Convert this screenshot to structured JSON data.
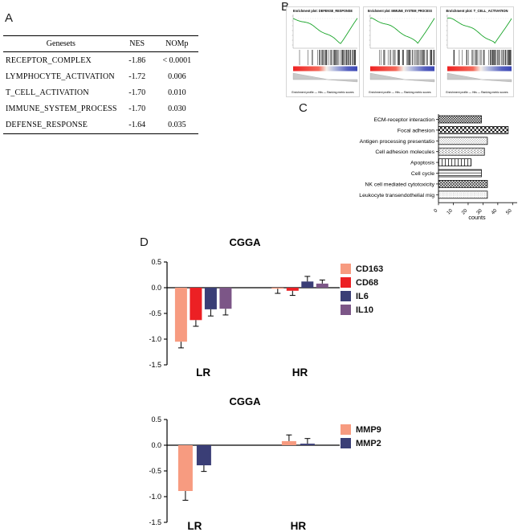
{
  "panels": {
    "a": "A",
    "b": "B",
    "c": "C",
    "d": "D"
  },
  "table": {
    "headers": [
      "Genesets",
      "NES",
      "NOMp"
    ],
    "rows": [
      {
        "geneset": "RECEPTOR_COMPLEX",
        "nes": "-1.86",
        "nomp": "< 0.0001"
      },
      {
        "geneset": "LYMPHOCYTE_ACTIVATION",
        "nes": "-1.72",
        "nomp": "0.006"
      },
      {
        "geneset": "T_CELL_ACTIVATION",
        "nes": "-1.70",
        "nomp": "0.010"
      },
      {
        "geneset": "IMMUNE_SYSTEM_PROCESS",
        "nes": "-1.70",
        "nomp": "0.030"
      },
      {
        "geneset": "DEFENSE_RESPONSE",
        "nes": "-1.64",
        "nomp": "0.035"
      }
    ]
  },
  "gsea": {
    "plots": [
      {
        "title": "Enrichment plot: DEFENSE_RESPONSE"
      },
      {
        "title": "Enrichment plot: IMMUNE_SYSTEM_PROCESS"
      },
      {
        "title": "Enrichment plot: T_CELL_ACTIVATION"
      }
    ],
    "footer": "Enrichment profile — Hits — Ranking metric scores",
    "curve_color": "#18A428"
  },
  "chart_data": [
    {
      "id": "pathway_counts",
      "type": "bar",
      "orientation": "horizontal",
      "categories": [
        "ECM-receptor interaction",
        "Focal adhesion",
        "Antigen processing presentatio",
        "Cell adhesion molecules",
        "Apoptosis",
        "Cell cycle",
        "NK cell mediated cytotoxicity",
        "Leukocyte transendothelial mig"
      ],
      "values": [
        29,
        47,
        33,
        31,
        22,
        29,
        33,
        33
      ],
      "xlabel": "counts",
      "xticks": [
        0,
        10,
        20,
        30,
        40,
        50
      ],
      "xlim": [
        0,
        52
      ]
    },
    {
      "id": "cgga_markers",
      "type": "grouped_bar",
      "title": "CGGA",
      "categories": [
        "LR",
        "HR"
      ],
      "series": [
        {
          "name": "CD163",
          "color": "#F79B80",
          "values": [
            -1.05,
            -0.02
          ],
          "errors": [
            0.12,
            0.09
          ]
        },
        {
          "name": "CD68",
          "color": "#EC2024",
          "values": [
            -0.63,
            -0.06
          ],
          "errors": [
            0.12,
            0.09
          ]
        },
        {
          "name": "IL6",
          "color": "#3A3E76",
          "values": [
            -0.42,
            0.12
          ],
          "errors": [
            0.13,
            0.1
          ]
        },
        {
          "name": "IL10",
          "color": "#7C5687",
          "values": [
            -0.41,
            0.08
          ],
          "errors": [
            0.12,
            0.07
          ]
        }
      ],
      "yticks": [
        0.5,
        0.0,
        -0.5,
        -1.0,
        -1.5
      ],
      "ylim": [
        -1.5,
        0.5
      ]
    },
    {
      "id": "cgga_mmp",
      "type": "grouped_bar",
      "title": "CGGA",
      "categories": [
        "LR",
        "HR"
      ],
      "series": [
        {
          "name": "MMP9",
          "color": "#F79B80",
          "values": [
            -0.89,
            0.08
          ],
          "errors": [
            0.18,
            0.12
          ]
        },
        {
          "name": "MMP2",
          "color": "#3A3E76",
          "values": [
            -0.39,
            0.03
          ],
          "errors": [
            0.12,
            0.1
          ]
        }
      ],
      "yticks": [
        0.5,
        0.0,
        -0.5,
        -1.0,
        -1.5
      ],
      "ylim": [
        -1.5,
        0.5
      ]
    }
  ]
}
